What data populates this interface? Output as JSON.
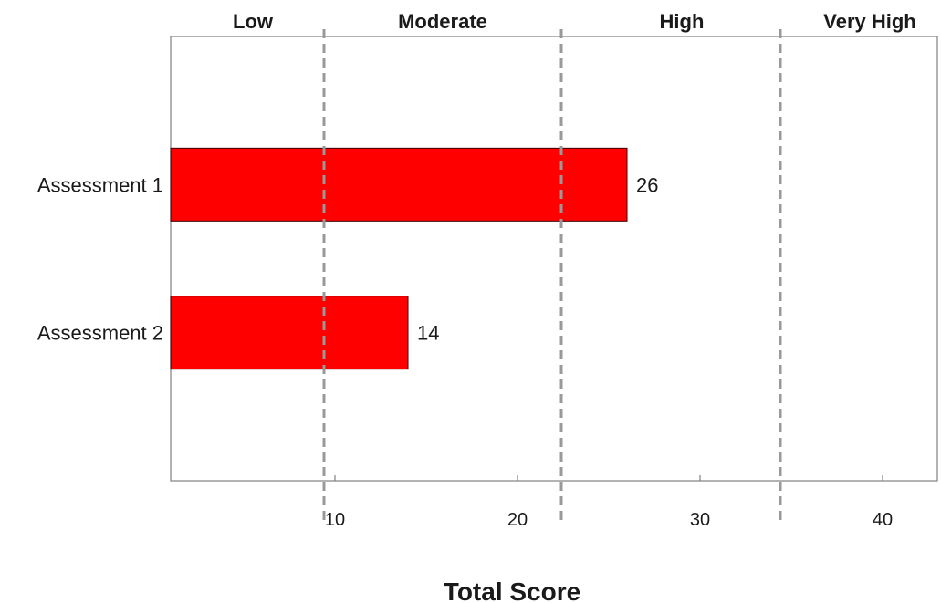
{
  "chart_data": {
    "type": "bar",
    "orientation": "horizontal",
    "categories": [
      "Assessment 1",
      "Assessment 2"
    ],
    "values": [
      26,
      14
    ],
    "data_labels": [
      "26",
      "14"
    ],
    "xlabel": "Total Score",
    "xlim": [
      1,
      43
    ],
    "xticks": [
      10,
      20,
      30,
      40
    ],
    "xtick_labels": [
      "10",
      "20",
      "30",
      "40"
    ],
    "threshold_lines": [
      9.4,
      22.4,
      34.4
    ],
    "bands": [
      {
        "label": "Low",
        "center": 5.5
      },
      {
        "label": "Moderate",
        "center": 15.9
      },
      {
        "label": "High",
        "center": 29.0
      },
      {
        "label": "Very High",
        "center": 39.3
      }
    ],
    "bar_color": "#ff0000",
    "threshold_color": "#999999",
    "grid": false,
    "legend": "none"
  }
}
